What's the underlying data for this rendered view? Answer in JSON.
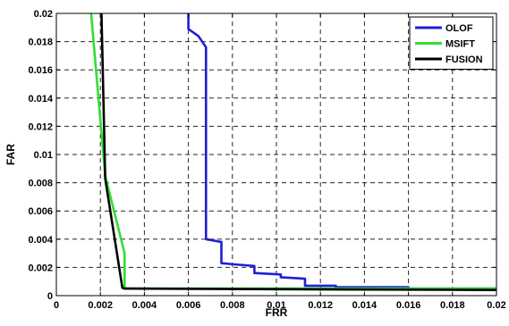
{
  "chart_data": {
    "type": "line",
    "title": "",
    "xlabel": "FRR",
    "ylabel": "FAR",
    "xlim": [
      0,
      0.02
    ],
    "ylim": [
      0,
      0.02
    ],
    "grid": true,
    "legend_position": "top-right",
    "x_ticks": [
      "0",
      "0.002",
      "0.004",
      "0.006",
      "0.008",
      "0.01",
      "0.012",
      "0.014",
      "0.016",
      "0.018",
      "0.02"
    ],
    "y_ticks": [
      "0",
      "0.002",
      "0.004",
      "0.006",
      "0.008",
      "0.01",
      "0.012",
      "0.014",
      "0.016",
      "0.018",
      "0.02"
    ],
    "series": [
      {
        "name": "OLOF",
        "color": "#1f1fd6",
        "points": [
          [
            0.006,
            0.02
          ],
          [
            0.006,
            0.0189
          ],
          [
            0.00645,
            0.0184
          ],
          [
            0.0068,
            0.0176
          ],
          [
            0.0068,
            0.004
          ],
          [
            0.0075,
            0.0038
          ],
          [
            0.0075,
            0.0023
          ],
          [
            0.0082,
            0.0022
          ],
          [
            0.009,
            0.0021
          ],
          [
            0.009,
            0.0016
          ],
          [
            0.0102,
            0.0015
          ],
          [
            0.0102,
            0.0013
          ],
          [
            0.0113,
            0.0012
          ],
          [
            0.0113,
            0.0007
          ],
          [
            0.0127,
            0.0007
          ],
          [
            0.0127,
            0.0006
          ],
          [
            0.016,
            0.0006
          ],
          [
            0.016,
            0.0005
          ],
          [
            0.02,
            0.0005
          ]
        ]
      },
      {
        "name": "MSIFT",
        "color": "#33dd33",
        "points": [
          [
            0.00158,
            0.02
          ],
          [
            0.00222,
            0.0085
          ],
          [
            0.0031,
            0.003
          ],
          [
            0.0031,
            0.0005
          ],
          [
            0.02,
            0.0005
          ]
        ]
      },
      {
        "name": "FUSION",
        "color": "#000000",
        "points": [
          [
            0.00205,
            0.02
          ],
          [
            0.00222,
            0.0083
          ],
          [
            0.003,
            0.00055
          ],
          [
            0.0031,
            0.0005
          ],
          [
            0.02,
            0.0004
          ]
        ]
      }
    ]
  }
}
